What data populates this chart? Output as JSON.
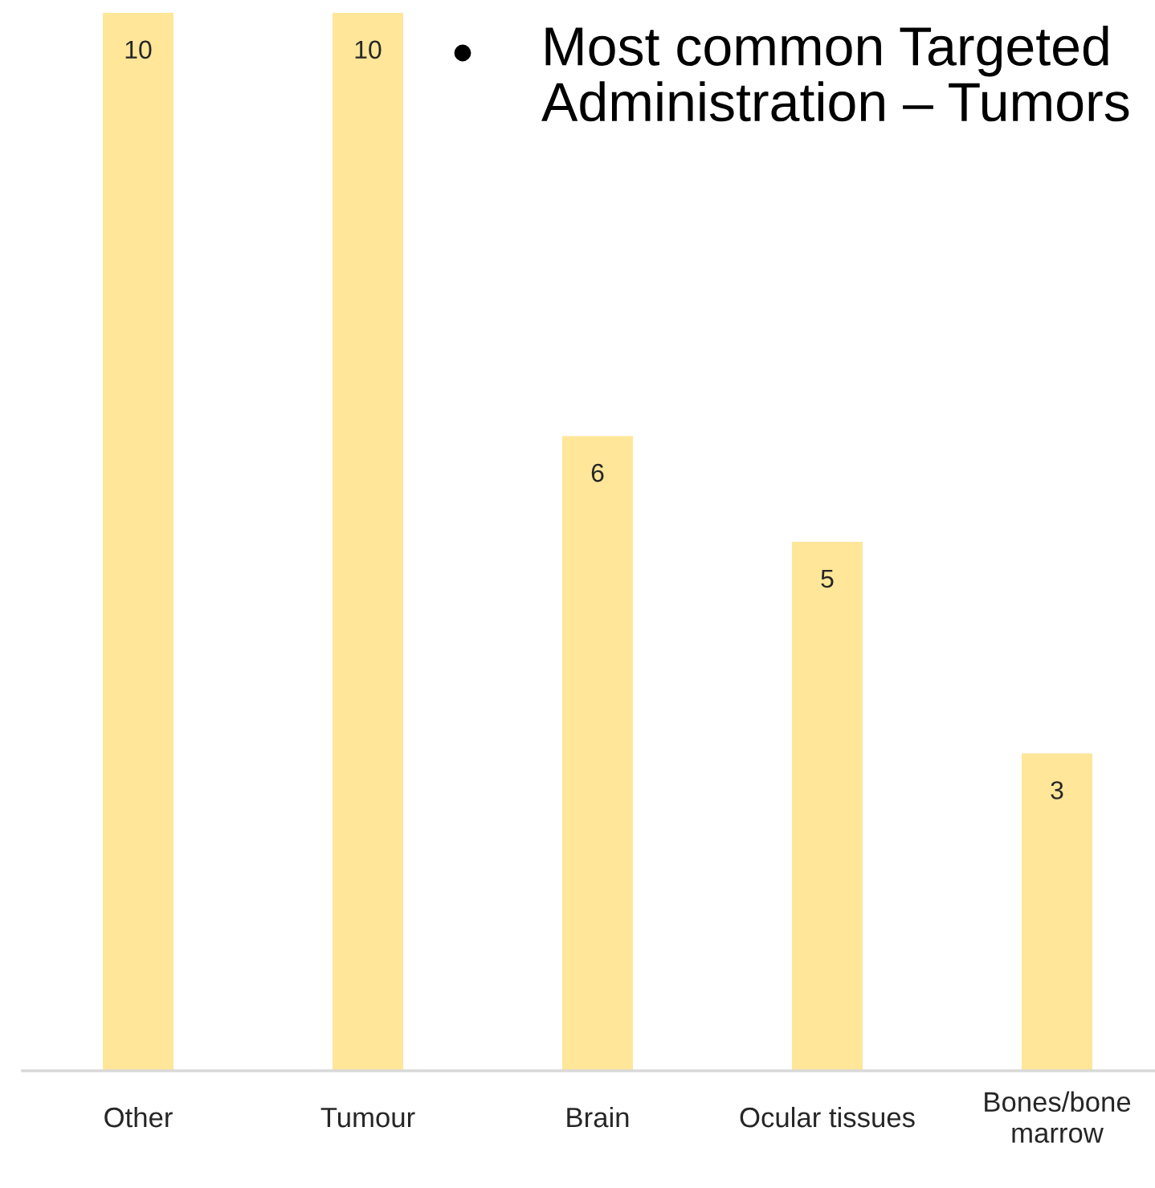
{
  "chart_data": {
    "type": "bar",
    "title": "Most common Targeted Administration – Tumors",
    "categories": [
      "Other",
      "Tumour",
      "Brain",
      "Ocular tissues",
      "Bones/bone marrow"
    ],
    "values": [
      10,
      10,
      6,
      5,
      3
    ],
    "color": "#ffe699",
    "data_labels": true
  }
}
